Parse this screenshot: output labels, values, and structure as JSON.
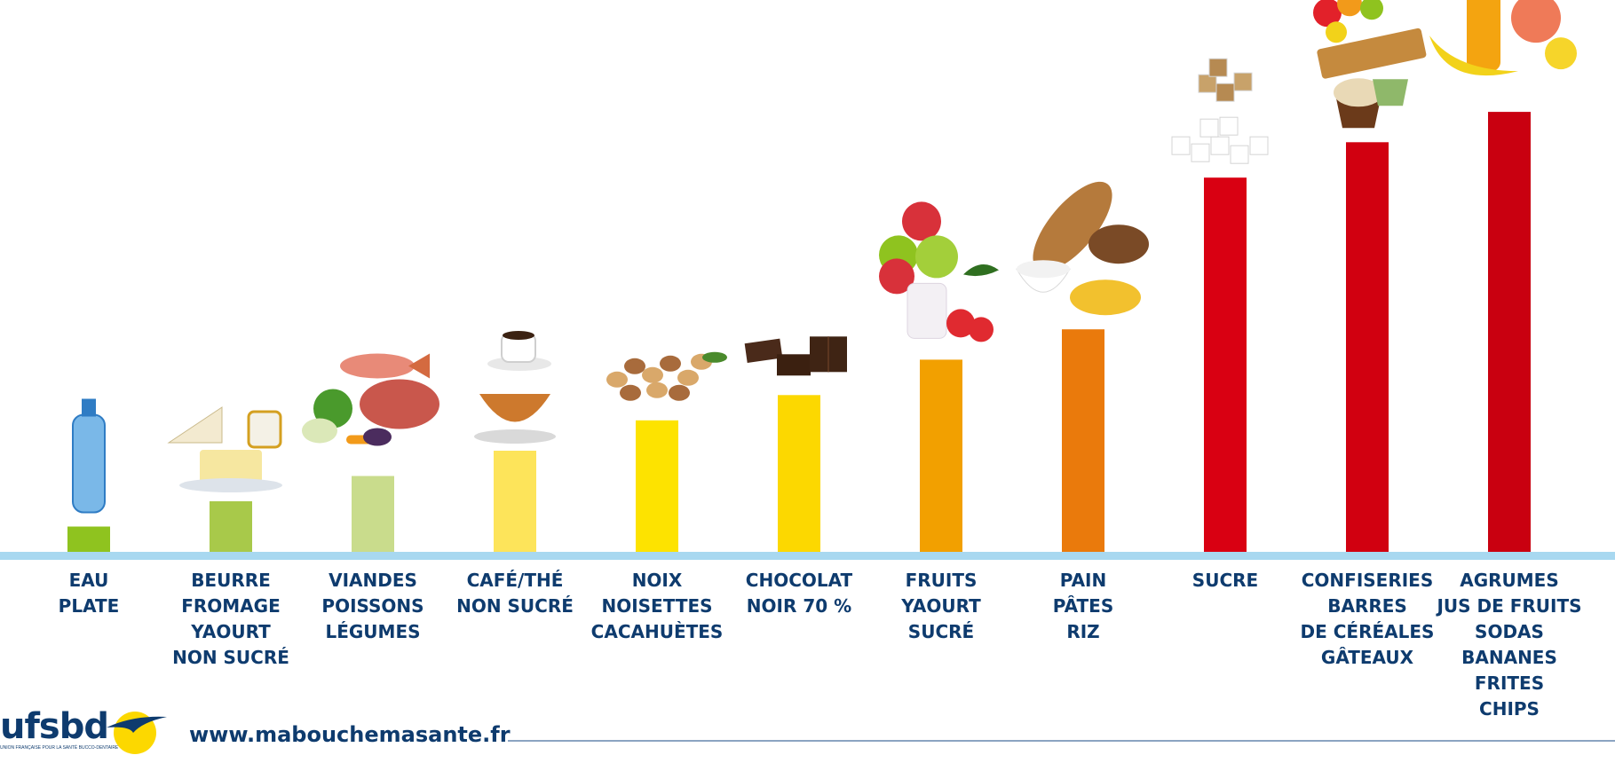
{
  "chart_data": {
    "type": "bar",
    "title": "",
    "xlabel": "",
    "ylabel": "",
    "ylim": [
      0,
      100
    ],
    "grid": false,
    "categories": [
      "EAU\nPLATE",
      "BEURRE\nFROMAGE\nYAOURT\nNON SUCRÉ",
      "VIANDES\nPOISSONS\nLÉGUMES",
      "CAFÉ/THÉ\nNON SUCRÉ",
      "NOIX\nNOISETTES\nCACAHUÈTES",
      "CHOCOLAT\nNOIR 70 %",
      "FRUITS\nYAOURT\nSUCRÉ",
      "PAIN\nPÂTES\nRIZ",
      "SUCRE",
      "CONFISERIES\nBARRES\nDE CÉRÉALES\nGÂTEAUX",
      "AGRUMES\nJUS DE FRUITS\nSODAS\nBANANES\nFRITES\nCHIPS"
    ],
    "values": [
      5,
      10,
      15,
      20,
      26,
      31,
      38,
      44,
      74,
      81,
      87
    ],
    "colors": [
      "#8fc31f",
      "#a8c94a",
      "#c9dc8c",
      "#fde45a",
      "#fde300",
      "#fcd800",
      "#f2a000",
      "#ea7a0c",
      "#d90012",
      "#d10010",
      "#c90010"
    ],
    "icons": [
      "water-bottle-icon",
      "cheese-butter-icon",
      "meat-fish-vegetables-icon",
      "coffee-tea-icon",
      "nuts-icon",
      "chocolate-icon",
      "fruits-yogurt-icon",
      "bread-rice-pasta-icon",
      "sugar-cubes-icon",
      "sweets-cereal-bar-icon",
      "citrus-soda-fries-icon"
    ]
  },
  "baseline_color": "#a8d8f0",
  "footer": {
    "logo_text": "ufsbd",
    "logo_subtitle": "UNION FRANÇAISE POUR LA SANTÉ BUCCO-DENTAIRE",
    "url": "www.mabouchemasante.fr"
  }
}
